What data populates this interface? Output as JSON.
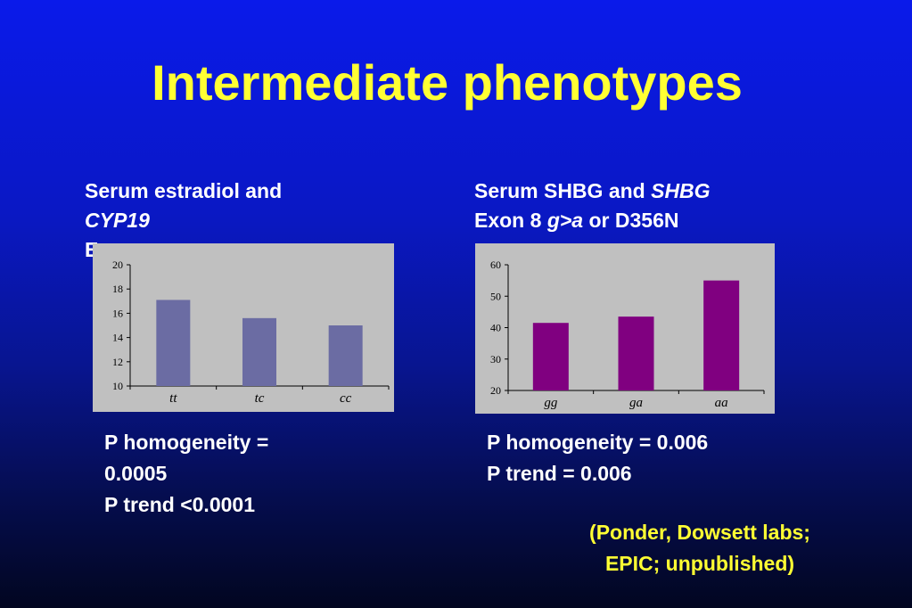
{
  "slide": {
    "title": "Intermediate phenotypes",
    "left_caption": {
      "line1": "Serum estradiol and",
      "line2_italic": "CYP19",
      "line3_partial": "E"
    },
    "right_caption": {
      "line1_plain": "Serum SHBG and ",
      "line1_italic": "SHBG",
      "line2_pre": "Exon 8 ",
      "line2_italic": "g>a",
      "line2_post": " or D356N"
    },
    "left_stats": {
      "line1": "P homogeneity =",
      "line2": "0.0005",
      "line3": "P trend <0.0001"
    },
    "right_stats": {
      "line1": "P homogeneity = 0.006",
      "line2": "P trend = 0.006"
    },
    "citation": {
      "line1": "(Ponder, Dowsett labs;",
      "line2": "EPIC; unpublished)"
    }
  },
  "colors": {
    "background": "#0a18c4",
    "title": "#ffff33",
    "left_bar": "#6b6ca3",
    "right_bar": "#800080",
    "plot_bg": "#c0c0c0"
  },
  "chart_data": [
    {
      "type": "bar",
      "categories": [
        "tt",
        "tc",
        "cc"
      ],
      "values": [
        17.1,
        15.6,
        15.0
      ],
      "ylim": [
        10,
        20
      ],
      "yticks": [
        "10",
        "12",
        "14",
        "16",
        "18",
        "20"
      ],
      "bar_color": "#6b6ca3",
      "grid": false
    },
    {
      "type": "bar",
      "categories": [
        "gg",
        "ga",
        "aa"
      ],
      "values": [
        41.5,
        43.5,
        55.0
      ],
      "ylim": [
        20,
        60
      ],
      "yticks": [
        "20",
        "30",
        "40",
        "50",
        "60"
      ],
      "bar_color": "#800080",
      "grid": false
    }
  ]
}
